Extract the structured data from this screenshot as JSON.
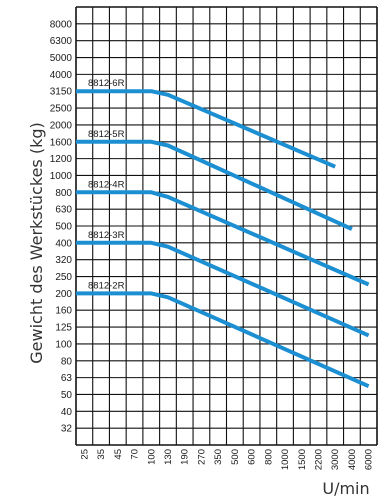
{
  "chart_data": {
    "type": "line",
    "ylabel": "Gewicht des Werkstückes (kg)",
    "xlabel": "U/min",
    "y_ticks": [
      "8000",
      "6300",
      "5000",
      "4000",
      "3150",
      "2500",
      "2000",
      "1600",
      "1200",
      "1000",
      "800",
      "630",
      "500",
      "400",
      "320",
      "250",
      "200",
      "160",
      "125",
      "100",
      "80",
      "63",
      "50",
      "40",
      "32"
    ],
    "x_ticks": [
      "25",
      "35",
      "45",
      "70",
      "100",
      "130",
      "190",
      "270",
      "350",
      "500",
      "600",
      "800",
      "1000",
      "1500",
      "2200",
      "3000",
      "4000",
      "6000"
    ],
    "grid": true,
    "series": [
      {
        "name": "8812-6R",
        "x": [
          "25",
          "100",
          "130",
          "3000"
        ],
        "y": [
          3150,
          3150,
          3000,
          1100
        ]
      },
      {
        "name": "8812-5R",
        "x": [
          "25",
          "100",
          "130",
          "4000"
        ],
        "y": [
          1600,
          1600,
          1500,
          480
        ]
      },
      {
        "name": "8812-4R",
        "x": [
          "25",
          "100",
          "130",
          "6000"
        ],
        "y": [
          800,
          800,
          750,
          225
        ]
      },
      {
        "name": "8812-3R",
        "x": [
          "25",
          "100",
          "130",
          "6000"
        ],
        "y": [
          400,
          400,
          380,
          112
        ]
      },
      {
        "name": "8812-2R",
        "x": [
          "25",
          "100",
          "130",
          "6000"
        ],
        "y": [
          200,
          200,
          190,
          56
        ]
      }
    ],
    "line_color": "#1c8fd2"
  }
}
